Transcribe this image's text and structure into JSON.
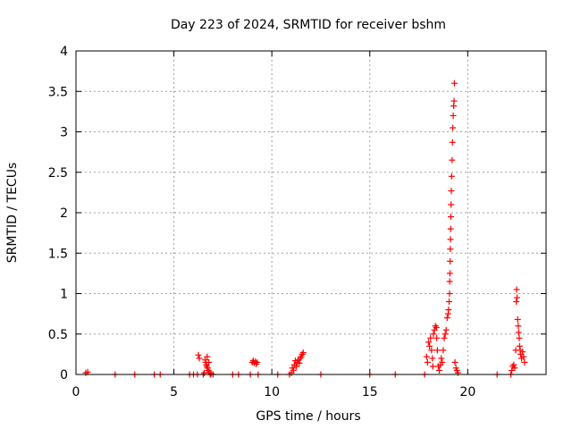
{
  "chart_data": {
    "type": "scatter",
    "title": "Day 223 of 2024, SRMTID for receiver bshm",
    "xlabel": "GPS time / hours",
    "ylabel": "SRMTID / TECUs",
    "xlim": [
      0,
      24
    ],
    "ylim": [
      0,
      4
    ],
    "xticks": [
      0,
      5,
      10,
      15,
      20
    ],
    "yticks": [
      0,
      0.5,
      1,
      1.5,
      2,
      2.5,
      3,
      3.5,
      4
    ],
    "xtick_labels": [
      "0",
      "5",
      "10",
      "15",
      "20"
    ],
    "ytick_labels": [
      "0",
      "0.5",
      "1",
      "1.5",
      "2",
      "2.5",
      "3",
      "3.5",
      "4"
    ],
    "grid": true,
    "marker": "+",
    "marker_color": "#ff0000",
    "series": [
      {
        "points": [
          [
            0.5,
            0.02
          ],
          [
            0.6,
            0.03
          ],
          [
            2.0,
            0.0
          ],
          [
            3.0,
            0.0
          ],
          [
            4.0,
            0.0
          ],
          [
            4.3,
            0.0
          ],
          [
            5.8,
            0.0
          ],
          [
            6.0,
            0.0
          ],
          [
            6.2,
            0.0
          ],
          [
            6.25,
            0.24
          ],
          [
            6.3,
            0.2
          ],
          [
            6.5,
            0.0
          ],
          [
            6.55,
            0.02
          ],
          [
            6.6,
            0.18
          ],
          [
            6.62,
            0.15
          ],
          [
            6.65,
            0.12
          ],
          [
            6.68,
            0.1
          ],
          [
            6.7,
            0.22
          ],
          [
            6.72,
            0.08
          ],
          [
            6.75,
            0.05
          ],
          [
            6.78,
            0.15
          ],
          [
            6.8,
            0.03
          ],
          [
            6.85,
            0.0
          ],
          [
            6.9,
            0.01
          ],
          [
            7.0,
            0.0
          ],
          [
            8.0,
            0.0
          ],
          [
            8.3,
            0.0
          ],
          [
            8.9,
            0.0
          ],
          [
            9.0,
            0.15
          ],
          [
            9.05,
            0.17
          ],
          [
            9.1,
            0.14
          ],
          [
            9.15,
            0.16
          ],
          [
            9.2,
            0.13
          ],
          [
            9.25,
            0.15
          ],
          [
            9.3,
            0.0
          ],
          [
            10.3,
            0.0
          ],
          [
            10.9,
            0.0
          ],
          [
            11.0,
            0.02
          ],
          [
            11.05,
            0.08
          ],
          [
            11.1,
            0.05
          ],
          [
            11.15,
            0.12
          ],
          [
            11.2,
            0.17
          ],
          [
            11.25,
            0.1
          ],
          [
            11.3,
            0.15
          ],
          [
            11.35,
            0.18
          ],
          [
            11.4,
            0.14
          ],
          [
            11.45,
            0.2
          ],
          [
            11.5,
            0.22
          ],
          [
            11.55,
            0.25
          ],
          [
            11.6,
            0.27
          ],
          [
            12.5,
            0.0
          ],
          [
            15.0,
            0.0
          ],
          [
            16.3,
            0.0
          ],
          [
            17.8,
            0.0
          ],
          [
            17.9,
            0.22
          ],
          [
            17.95,
            0.15
          ],
          [
            18.0,
            0.4
          ],
          [
            18.05,
            0.35
          ],
          [
            18.1,
            0.45
          ],
          [
            18.15,
            0.3
          ],
          [
            18.2,
            0.2
          ],
          [
            18.22,
            0.1
          ],
          [
            18.25,
            0.5
          ],
          [
            18.3,
            0.55
          ],
          [
            18.35,
            0.6
          ],
          [
            18.4,
            0.58
          ],
          [
            18.42,
            0.45
          ],
          [
            18.45,
            0.3
          ],
          [
            18.5,
            0.1
          ],
          [
            18.55,
            0.05
          ],
          [
            18.6,
            0.12
          ],
          [
            18.65,
            0.2
          ],
          [
            18.7,
            0.15
          ],
          [
            18.75,
            0.3
          ],
          [
            18.8,
            0.45
          ],
          [
            18.85,
            0.5
          ],
          [
            18.9,
            0.55
          ],
          [
            18.95,
            0.7
          ],
          [
            19.0,
            0.75
          ],
          [
            19.02,
            0.8
          ],
          [
            19.05,
            0.9
          ],
          [
            19.07,
            1.0
          ],
          [
            19.08,
            1.15
          ],
          [
            19.09,
            1.25
          ],
          [
            19.1,
            1.4
          ],
          [
            19.11,
            1.55
          ],
          [
            19.12,
            1.67
          ],
          [
            19.13,
            1.8
          ],
          [
            19.14,
            1.95
          ],
          [
            19.15,
            2.1
          ],
          [
            19.16,
            2.27
          ],
          [
            19.18,
            2.45
          ],
          [
            19.2,
            2.65
          ],
          [
            19.22,
            2.87
          ],
          [
            19.24,
            3.05
          ],
          [
            19.26,
            3.2
          ],
          [
            19.28,
            3.32
          ],
          [
            19.3,
            3.38
          ],
          [
            19.32,
            3.6
          ],
          [
            19.35,
            0.15
          ],
          [
            19.4,
            0.08
          ],
          [
            19.45,
            0.05
          ],
          [
            19.5,
            0.02
          ],
          [
            21.5,
            0.0
          ],
          [
            22.2,
            0.0
          ],
          [
            22.25,
            0.05
          ],
          [
            22.3,
            0.1
          ],
          [
            22.35,
            0.12
          ],
          [
            22.4,
            0.08
          ],
          [
            22.45,
            0.3
          ],
          [
            22.48,
            0.9
          ],
          [
            22.5,
            1.05
          ],
          [
            22.52,
            0.95
          ],
          [
            22.55,
            0.68
          ],
          [
            22.58,
            0.6
          ],
          [
            22.6,
            0.52
          ],
          [
            22.63,
            0.45
          ],
          [
            22.65,
            0.35
          ],
          [
            22.68,
            0.3
          ],
          [
            22.7,
            0.25
          ],
          [
            22.75,
            0.2
          ],
          [
            22.8,
            0.28
          ],
          [
            22.85,
            0.22
          ],
          [
            22.9,
            0.15
          ]
        ]
      }
    ]
  }
}
